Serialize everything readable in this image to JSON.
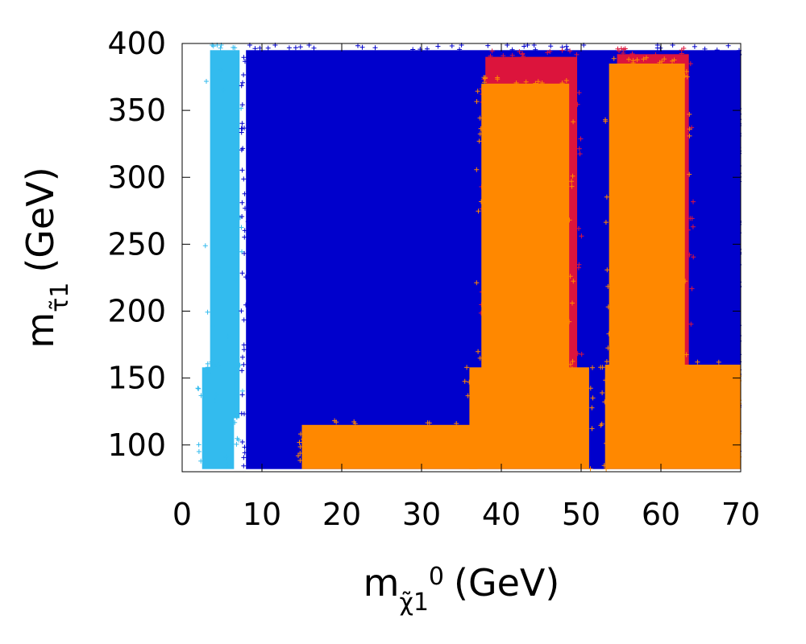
{
  "chart_data": {
    "type": "scatter",
    "title": "",
    "xlabel": {
      "main": "m",
      "sub": "χ̃1",
      "sup": "0",
      "unit": "(GeV)"
    },
    "ylabel": {
      "main": "m",
      "sub": "τ̃1",
      "unit": "(GeV)"
    },
    "xlim": [
      0,
      70
    ],
    "ylim": [
      80,
      400
    ],
    "xticks": [
      "0",
      "10",
      "20",
      "30",
      "40",
      "50",
      "60",
      "70"
    ],
    "yticks": [
      "100",
      "150",
      "200",
      "250",
      "300",
      "350",
      "400"
    ],
    "xtick_values": [
      0,
      10,
      20,
      30,
      40,
      50,
      60,
      70
    ],
    "ytick_values": [
      100,
      150,
      200,
      250,
      300,
      350,
      400
    ],
    "grid": false,
    "legend": "none",
    "series": [
      {
        "color": "#33bbee",
        "regions": [
          {
            "x": [
              3.5,
              7.2
            ],
            "y": [
              120,
              395
            ]
          },
          {
            "x": [
              2.5,
              6.5
            ],
            "y": [
              82,
              158
            ]
          }
        ]
      },
      {
        "color": "#0000cc",
        "regions": [
          {
            "x": [
              8,
              70
            ],
            "y": [
              82,
              395
            ]
          }
        ]
      },
      {
        "color": "#dc143c",
        "regions": [
          {
            "x": [
              38,
              49.5
            ],
            "y": [
              155,
              390
            ]
          },
          {
            "x": [
              54.5,
              63.5
            ],
            "y": [
              155,
              392
            ]
          }
        ]
      },
      {
        "color": "#ff8800",
        "regions": [
          {
            "x": [
              37.5,
              48.5
            ],
            "y": [
              120,
              370
            ]
          },
          {
            "x": [
              53.5,
              63
            ],
            "y": [
              120,
              385
            ]
          },
          {
            "x": [
              36,
              51
            ],
            "y": [
              82,
              158
            ]
          },
          {
            "x": [
              53,
              70
            ],
            "y": [
              82,
              160
            ]
          },
          {
            "x": [
              15,
              37
            ],
            "y": [
              82,
              115
            ]
          }
        ]
      }
    ]
  }
}
